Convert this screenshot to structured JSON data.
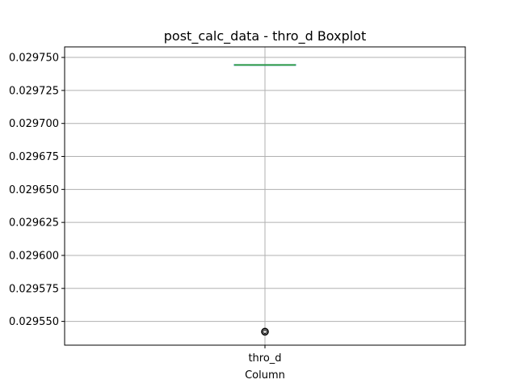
{
  "chart_data": {
    "type": "box",
    "title": "post_calc_data - thro_d Boxplot",
    "xlabel": "Column",
    "ylabel": "",
    "categories": [
      "thro_d"
    ],
    "ylim": [
      0.029532,
      0.029758
    ],
    "yticks": [
      0.02955,
      0.029575,
      0.0296,
      0.029625,
      0.02965,
      0.029675,
      0.0297,
      0.029725,
      0.02975
    ],
    "ytick_labels": [
      "0.029550",
      "0.029575",
      "0.029600",
      "0.029625",
      "0.029650",
      "0.029675",
      "0.029700",
      "0.029725",
      "0.029750"
    ],
    "grid": true,
    "boxes": [
      {
        "name": "thro_d",
        "q1": 0.0297443,
        "median": 0.0297443,
        "q3": 0.0297443,
        "whisker_low": 0.0297443,
        "whisker_high": 0.0297443,
        "outliers": [
          0.0295422
        ]
      }
    ],
    "colors": {
      "box": "#1f77b4",
      "median": "#2ca02c",
      "grid": "#b0b0b0",
      "outlier": "#000000"
    }
  }
}
